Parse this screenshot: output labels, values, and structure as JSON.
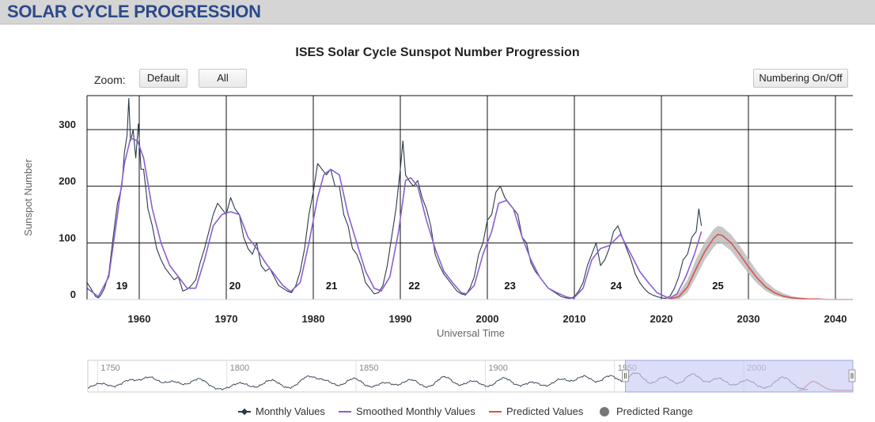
{
  "header": {
    "title": "SOLAR CYCLE PROGRESSION"
  },
  "controls": {
    "zoom_label": "Zoom:",
    "default_label": "Default",
    "all_label": "All",
    "numbering_label": "Numbering On/Off"
  },
  "colors": {
    "monthly": "#2b3a4a",
    "smoothed": "#8a5fd0",
    "predicted": "#d9534f",
    "range": "#bdbdbd",
    "navigator_mask": "#c9cdf5"
  },
  "chart_data": {
    "type": "line",
    "title": "ISES Solar Cycle Sunspot Number Progression",
    "xlabel": "Universal Time",
    "ylabel": "Sunspot Number",
    "xlim": [
      1953.0,
      2041.0
    ],
    "ylim": [
      0,
      360
    ],
    "x_ticks": [
      1960,
      1970,
      1980,
      1990,
      2000,
      2010,
      2020,
      2030,
      2040
    ],
    "y_ticks": [
      0,
      100,
      200,
      300
    ],
    "grid": true,
    "legend_position": "bottom",
    "cycle_labels": [
      {
        "label": "19",
        "x": 1957.0
      },
      {
        "label": "20",
        "x": 1970.0
      },
      {
        "label": "21",
        "x": 1981.1
      },
      {
        "label": "22",
        "x": 1990.6
      },
      {
        "label": "23",
        "x": 2001.6
      },
      {
        "label": "24",
        "x": 2013.8
      },
      {
        "label": "25",
        "x": 2025.5
      }
    ],
    "series": [
      {
        "name": "Monthly Values",
        "x": [
          1953.0,
          1953.5,
          1954.0,
          1954.3,
          1954.6,
          1955.0,
          1955.5,
          1956.0,
          1956.5,
          1957.0,
          1957.3,
          1957.6,
          1957.8,
          1958.0,
          1958.3,
          1958.6,
          1958.9,
          1959.2,
          1959.5,
          1959.8,
          1960.0,
          1960.5,
          1961.0,
          1961.5,
          1962.0,
          1962.5,
          1963.0,
          1963.5,
          1964.0,
          1964.5,
          1965.0,
          1965.5,
          1966.0,
          1966.5,
          1967.0,
          1967.5,
          1968.0,
          1968.5,
          1969.0,
          1969.5,
          1970.0,
          1970.5,
          1971.0,
          1971.5,
          1972.0,
          1972.5,
          1973.0,
          1973.5,
          1974.0,
          1974.5,
          1975.0,
          1975.5,
          1976.0,
          1976.5,
          1977.0,
          1977.5,
          1978.0,
          1978.5,
          1979.0,
          1979.5,
          1980.0,
          1980.5,
          1981.0,
          1981.5,
          1982.0,
          1982.5,
          1983.0,
          1983.5,
          1984.0,
          1984.5,
          1985.0,
          1985.5,
          1986.0,
          1986.5,
          1987.0,
          1987.5,
          1988.0,
          1988.5,
          1989.0,
          1989.3,
          1989.6,
          1990.0,
          1990.5,
          1991.0,
          1991.5,
          1992.0,
          1992.5,
          1993.0,
          1993.5,
          1994.0,
          1994.5,
          1995.0,
          1995.5,
          1996.0,
          1996.5,
          1997.0,
          1997.5,
          1998.0,
          1998.5,
          1999.0,
          1999.5,
          2000.0,
          2000.5,
          2001.0,
          2001.5,
          2002.0,
          2002.5,
          2003.0,
          2003.5,
          2004.0,
          2004.5,
          2005.0,
          2005.5,
          2006.0,
          2006.5,
          2007.0,
          2007.5,
          2008.0,
          2008.5,
          2009.0,
          2009.5,
          2010.0,
          2010.5,
          2011.0,
          2011.5,
          2012.0,
          2012.5,
          2013.0,
          2013.5,
          2014.0,
          2014.5,
          2015.0,
          2015.5,
          2016.0,
          2016.5,
          2017.0,
          2017.5,
          2018.0,
          2018.5,
          2019.0,
          2019.5,
          2020.0,
          2020.5,
          2021.0,
          2021.5,
          2022.0,
          2022.5,
          2023.0,
          2023.3,
          2023.6
        ],
        "values": [
          30,
          18,
          5,
          3,
          8,
          20,
          45,
          110,
          170,
          200,
          260,
          290,
          355,
          280,
          300,
          250,
          310,
          230,
          230,
          190,
          160,
          130,
          90,
          70,
          55,
          45,
          35,
          40,
          15,
          18,
          25,
          35,
          65,
          90,
          120,
          150,
          170,
          160,
          150,
          180,
          160,
          150,
          110,
          90,
          80,
          100,
          60,
          50,
          55,
          40,
          25,
          20,
          15,
          12,
          25,
          50,
          90,
          150,
          190,
          240,
          230,
          220,
          230,
          200,
          200,
          150,
          130,
          90,
          80,
          60,
          30,
          20,
          10,
          12,
          25,
          60,
          110,
          160,
          230,
          280,
          220,
          210,
          200,
          210,
          180,
          160,
          130,
          80,
          60,
          45,
          35,
          25,
          15,
          10,
          8,
          20,
          40,
          80,
          100,
          140,
          150,
          190,
          200,
          180,
          170,
          160,
          150,
          110,
          100,
          65,
          50,
          40,
          30,
          20,
          15,
          10,
          5,
          3,
          2,
          5,
          15,
          30,
          60,
          80,
          100,
          60,
          70,
          90,
          120,
          130,
          110,
          90,
          70,
          45,
          30,
          20,
          12,
          8,
          5,
          3,
          2,
          6,
          20,
          40,
          70,
          80,
          110,
          120,
          160,
          130
        ]
      },
      {
        "name": "Smoothed Monthly Values",
        "x": [
          1953.0,
          1954.3,
          1955.5,
          1956.5,
          1957.3,
          1958.0,
          1958.8,
          1959.5,
          1960.5,
          1961.5,
          1962.5,
          1963.5,
          1964.5,
          1965.5,
          1966.5,
          1967.5,
          1968.5,
          1969.5,
          1970.5,
          1971.5,
          1972.5,
          1973.5,
          1974.5,
          1975.5,
          1976.4,
          1977.5,
          1978.5,
          1979.5,
          1980.2,
          1981.0,
          1982.0,
          1983.0,
          1984.0,
          1985.0,
          1986.0,
          1986.8,
          1987.8,
          1988.8,
          1989.6,
          1990.2,
          1991.0,
          1992.0,
          1993.0,
          1994.0,
          1995.0,
          1996.0,
          1996.6,
          1997.5,
          1998.5,
          1999.5,
          2000.3,
          2001.2,
          2002.0,
          2003.0,
          2004.0,
          2005.0,
          2006.0,
          2007.0,
          2008.0,
          2008.9,
          2010.0,
          2011.0,
          2012.0,
          2013.0,
          2014.3,
          2015.5,
          2016.5,
          2017.5,
          2018.5,
          2019.9,
          2020.8,
          2021.8,
          2022.8,
          2023.6
        ],
        "values": [
          20,
          5,
          40,
          150,
          240,
          285,
          280,
          250,
          160,
          100,
          60,
          40,
          20,
          20,
          70,
          130,
          150,
          155,
          150,
          110,
          90,
          65,
          45,
          25,
          14,
          30,
          100,
          180,
          220,
          230,
          220,
          150,
          100,
          50,
          20,
          15,
          40,
          120,
          210,
          215,
          200,
          140,
          90,
          50,
          30,
          12,
          10,
          25,
          80,
          120,
          170,
          175,
          160,
          110,
          70,
          40,
          20,
          12,
          5,
          2,
          20,
          70,
          90,
          95,
          115,
          80,
          50,
          30,
          12,
          2,
          10,
          40,
          80,
          120
        ]
      },
      {
        "name": "Predicted Values",
        "x": [
          2020.0,
          2021.0,
          2022.0,
          2023.0,
          2024.0,
          2025.0,
          2025.5,
          2026.0,
          2027.0,
          2028.0,
          2029.0,
          2030.0,
          2031.0,
          2032.0,
          2033.0,
          2034.0,
          2035.0,
          2036.0,
          2037.0,
          2038.0,
          2040.0,
          2041.0
        ],
        "values": [
          1,
          5,
          22,
          55,
          85,
          108,
          115,
          113,
          100,
          80,
          58,
          38,
          22,
          12,
          6,
          3,
          2,
          1,
          1,
          0,
          0,
          0
        ]
      },
      {
        "name": "Predicted Range",
        "x": [
          2020.0,
          2021.0,
          2022.0,
          2023.0,
          2024.0,
          2025.0,
          2025.5,
          2026.0,
          2027.0,
          2028.0,
          2029.0,
          2030.0,
          2031.0,
          2032.0,
          2033.0,
          2034.0,
          2035.0,
          2036.0,
          2037.0,
          2038.0,
          2040.0,
          2041.0
        ],
        "low": [
          0,
          0,
          12,
          40,
          70,
          92,
          100,
          98,
          86,
          66,
          46,
          28,
          15,
          7,
          3,
          1,
          0,
          0,
          0,
          0,
          0,
          0
        ],
        "high": [
          3,
          12,
          35,
          72,
          102,
          124,
          130,
          128,
          115,
          95,
          72,
          50,
          32,
          19,
          11,
          6,
          3,
          2,
          1,
          1,
          0,
          0
        ]
      }
    ],
    "navigator": {
      "xlim": [
        1745,
        2041
      ],
      "x_ticks": [
        1750,
        1800,
        1850,
        1900,
        1950,
        2000
      ],
      "selected_range": [
        1953.0,
        2041.0
      ],
      "cycle_peaks": [
        1750,
        1761,
        1769,
        1778,
        1788,
        1804,
        1816,
        1830,
        1837,
        1848,
        1860,
        1870,
        1883,
        1894,
        1906,
        1917,
        1928,
        1937,
        1947,
        1957,
        1968,
        1979,
        1989,
        2000,
        2014
      ]
    }
  }
}
